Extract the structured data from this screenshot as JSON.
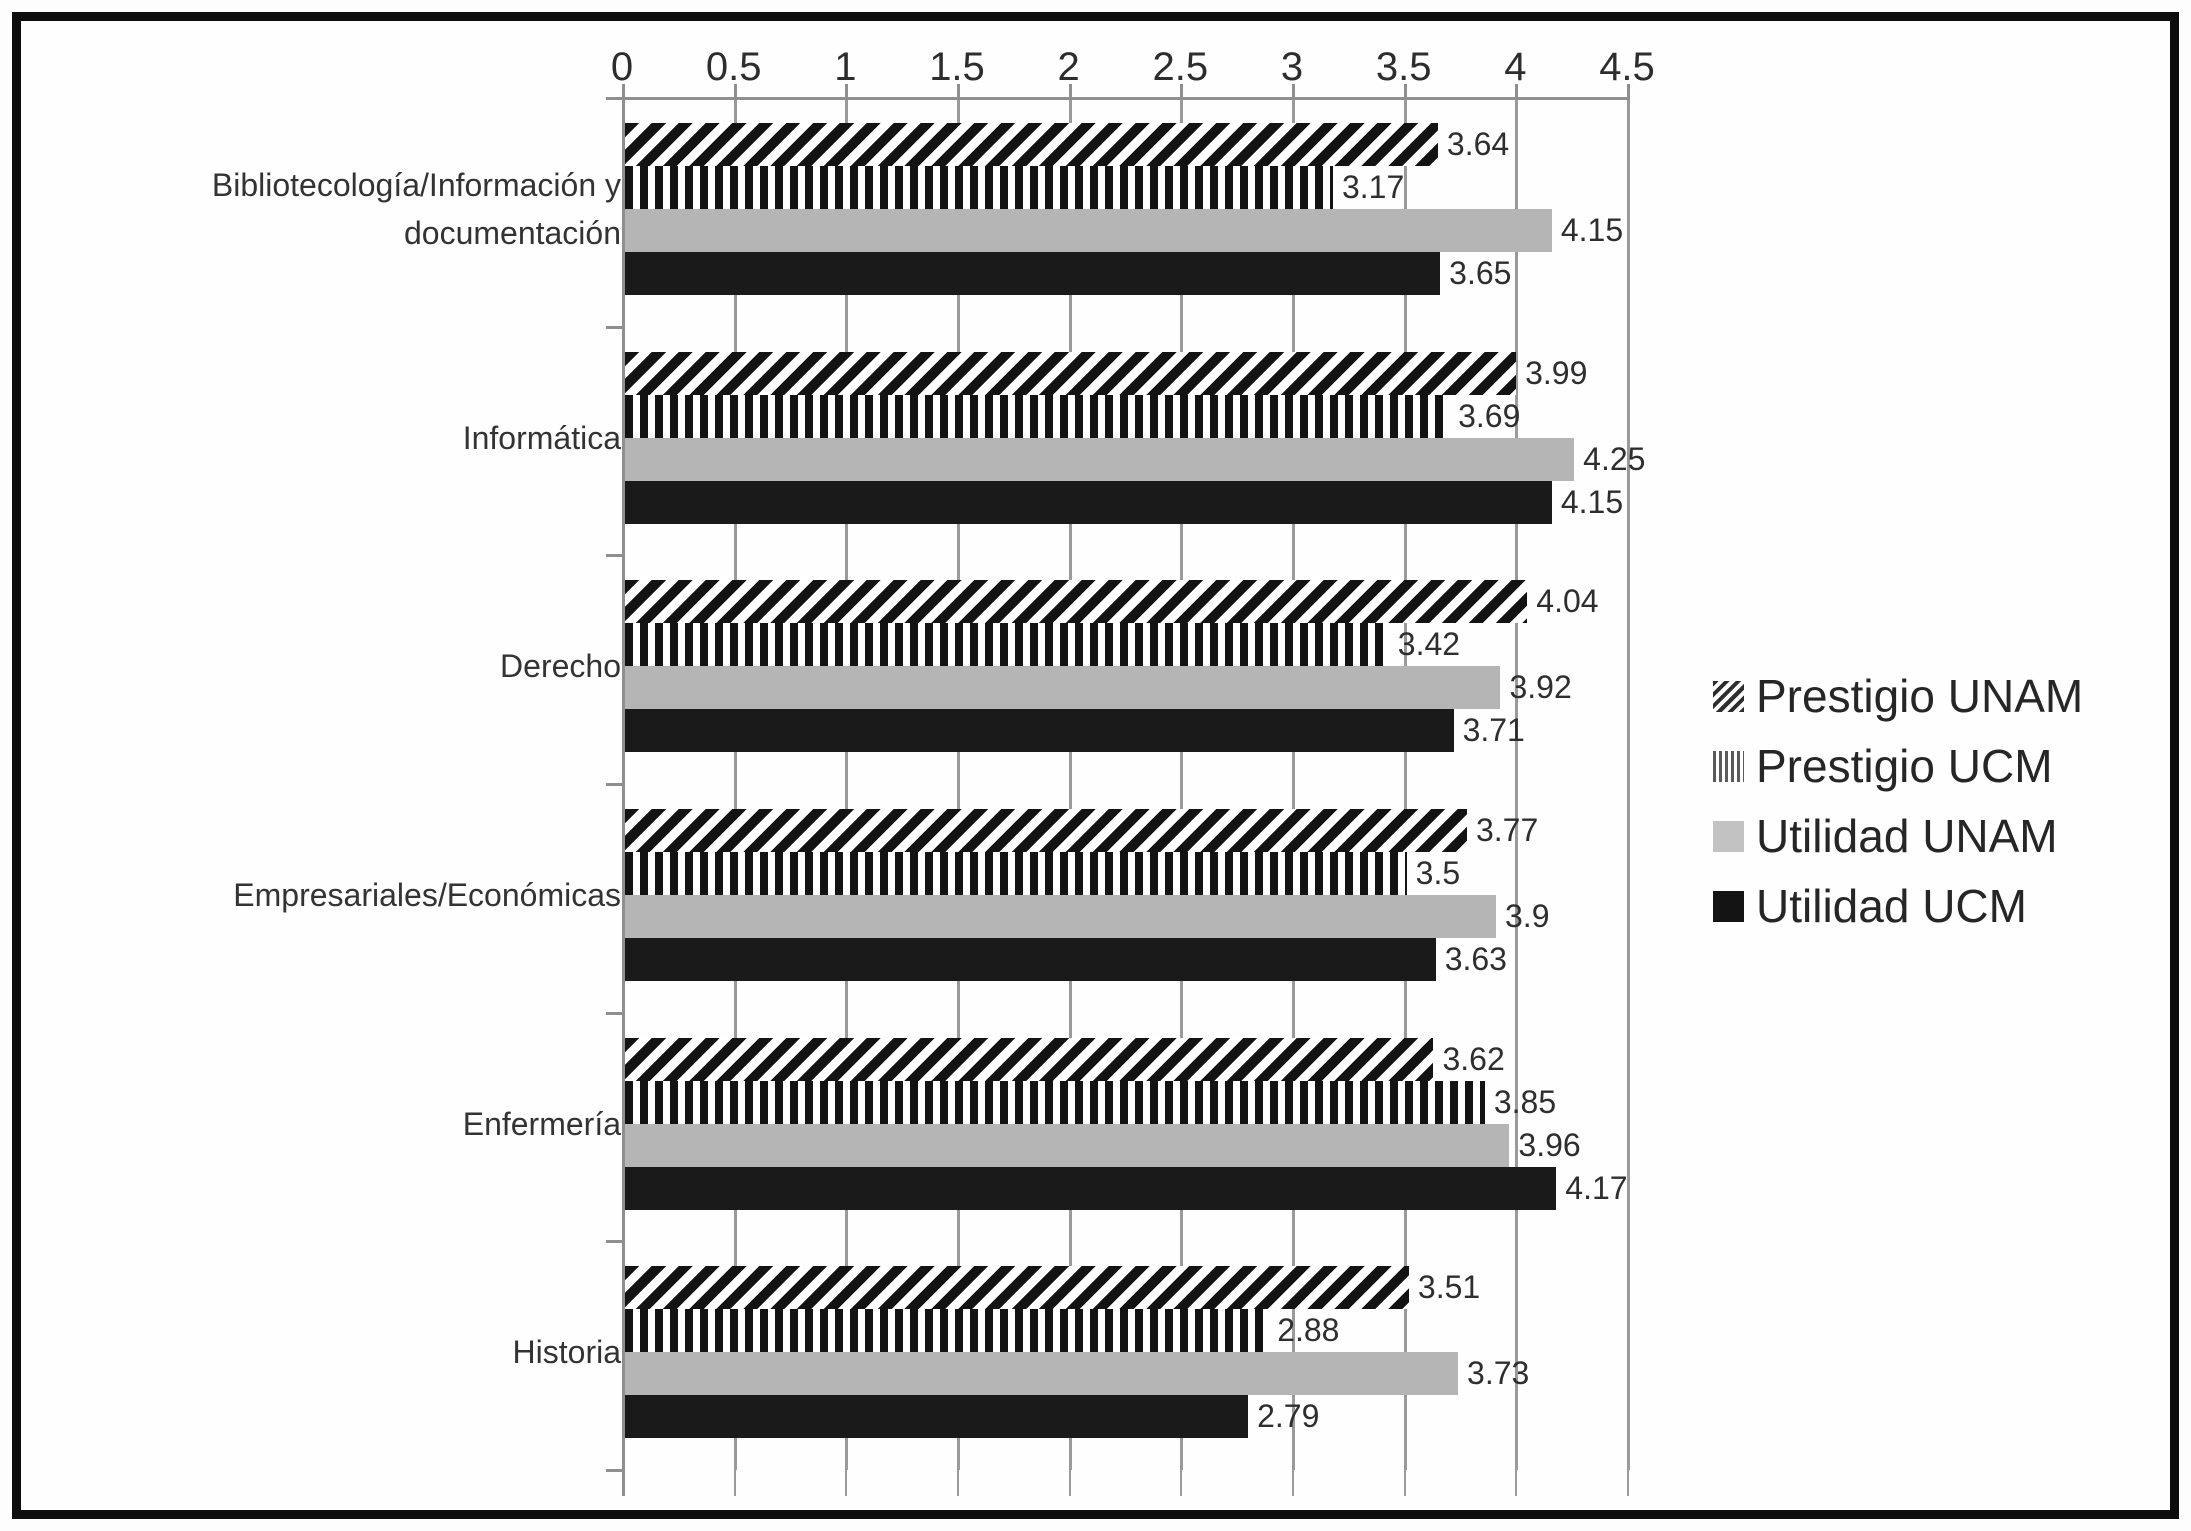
{
  "chart_data": {
    "type": "bar",
    "orientation": "horizontal",
    "title": "",
    "xlabel": "",
    "ylabel": "",
    "xlim": [
      0,
      4.5
    ],
    "xticks": [
      0,
      0.5,
      1,
      1.5,
      2,
      2.5,
      3,
      3.5,
      4,
      4.5
    ],
    "xtick_labels": [
      "0",
      "0.5",
      "1",
      "1.5",
      "2",
      "2.5",
      "3",
      "3.5",
      "4",
      "4.5"
    ],
    "grid": true,
    "value_labels": true,
    "legend_position": "right",
    "categories": [
      "Bibliotecología/Información y\ndocumentación",
      "Informática",
      "Derecho",
      "Empresariales/Económicas",
      "Enfermería",
      "Historia"
    ],
    "series": [
      {
        "name": "Prestigio UNAM",
        "pattern": "hatch",
        "color": "#131313",
        "values": [
          3.64,
          3.99,
          4.04,
          3.77,
          3.62,
          3.51
        ]
      },
      {
        "name": "Prestigio UCM",
        "pattern": "vstripe",
        "color": "#131313",
        "values": [
          3.17,
          3.69,
          3.42,
          3.5,
          3.85,
          2.88
        ]
      },
      {
        "name": "Utilidad UNAM",
        "pattern": "gray",
        "color": "#b5b5b5",
        "values": [
          4.15,
          4.25,
          3.92,
          3.9,
          3.96,
          3.73
        ]
      },
      {
        "name": "Utilidad UCM",
        "pattern": "black",
        "color": "#1a1a1a",
        "values": [
          3.65,
          4.15,
          3.71,
          3.63,
          4.17,
          2.79
        ]
      }
    ],
    "colors": {
      "grid": "#9a9a9a",
      "axis": "#8f8f8f",
      "text": "#2d2d2d",
      "frame_border": "#0d0d0d",
      "background": "#fefefe"
    }
  }
}
